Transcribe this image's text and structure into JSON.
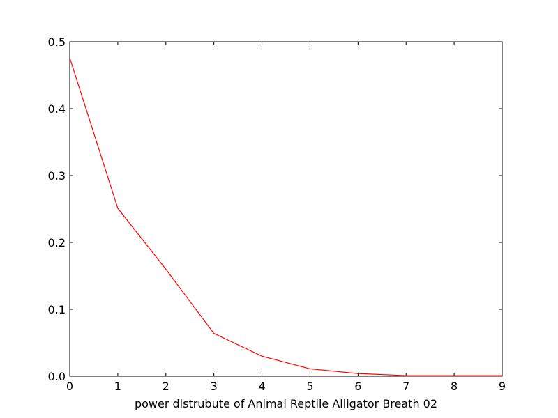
{
  "chart_data": {
    "type": "line",
    "title": "",
    "xlabel": "power distrubute of Animal Reptile Alligator Breath 02",
    "ylabel": "",
    "xlim": [
      0,
      9
    ],
    "ylim": [
      0,
      0.5
    ],
    "x_ticks": [
      "0",
      "1",
      "2",
      "3",
      "4",
      "5",
      "6",
      "7",
      "8",
      "9"
    ],
    "y_ticks": [
      "0.0",
      "0.1",
      "0.2",
      "0.3",
      "0.4",
      "0.5"
    ],
    "grid": false,
    "legend": "none",
    "series": [
      {
        "color": "#ff0000",
        "x": [
          0,
          1,
          2,
          3,
          4,
          5,
          6,
          7,
          8,
          9
        ],
        "y": [
          0.476,
          0.251,
          0.16,
          0.064,
          0.03,
          0.011,
          0.004,
          0.001,
          0.001,
          0.001
        ]
      }
    ]
  }
}
